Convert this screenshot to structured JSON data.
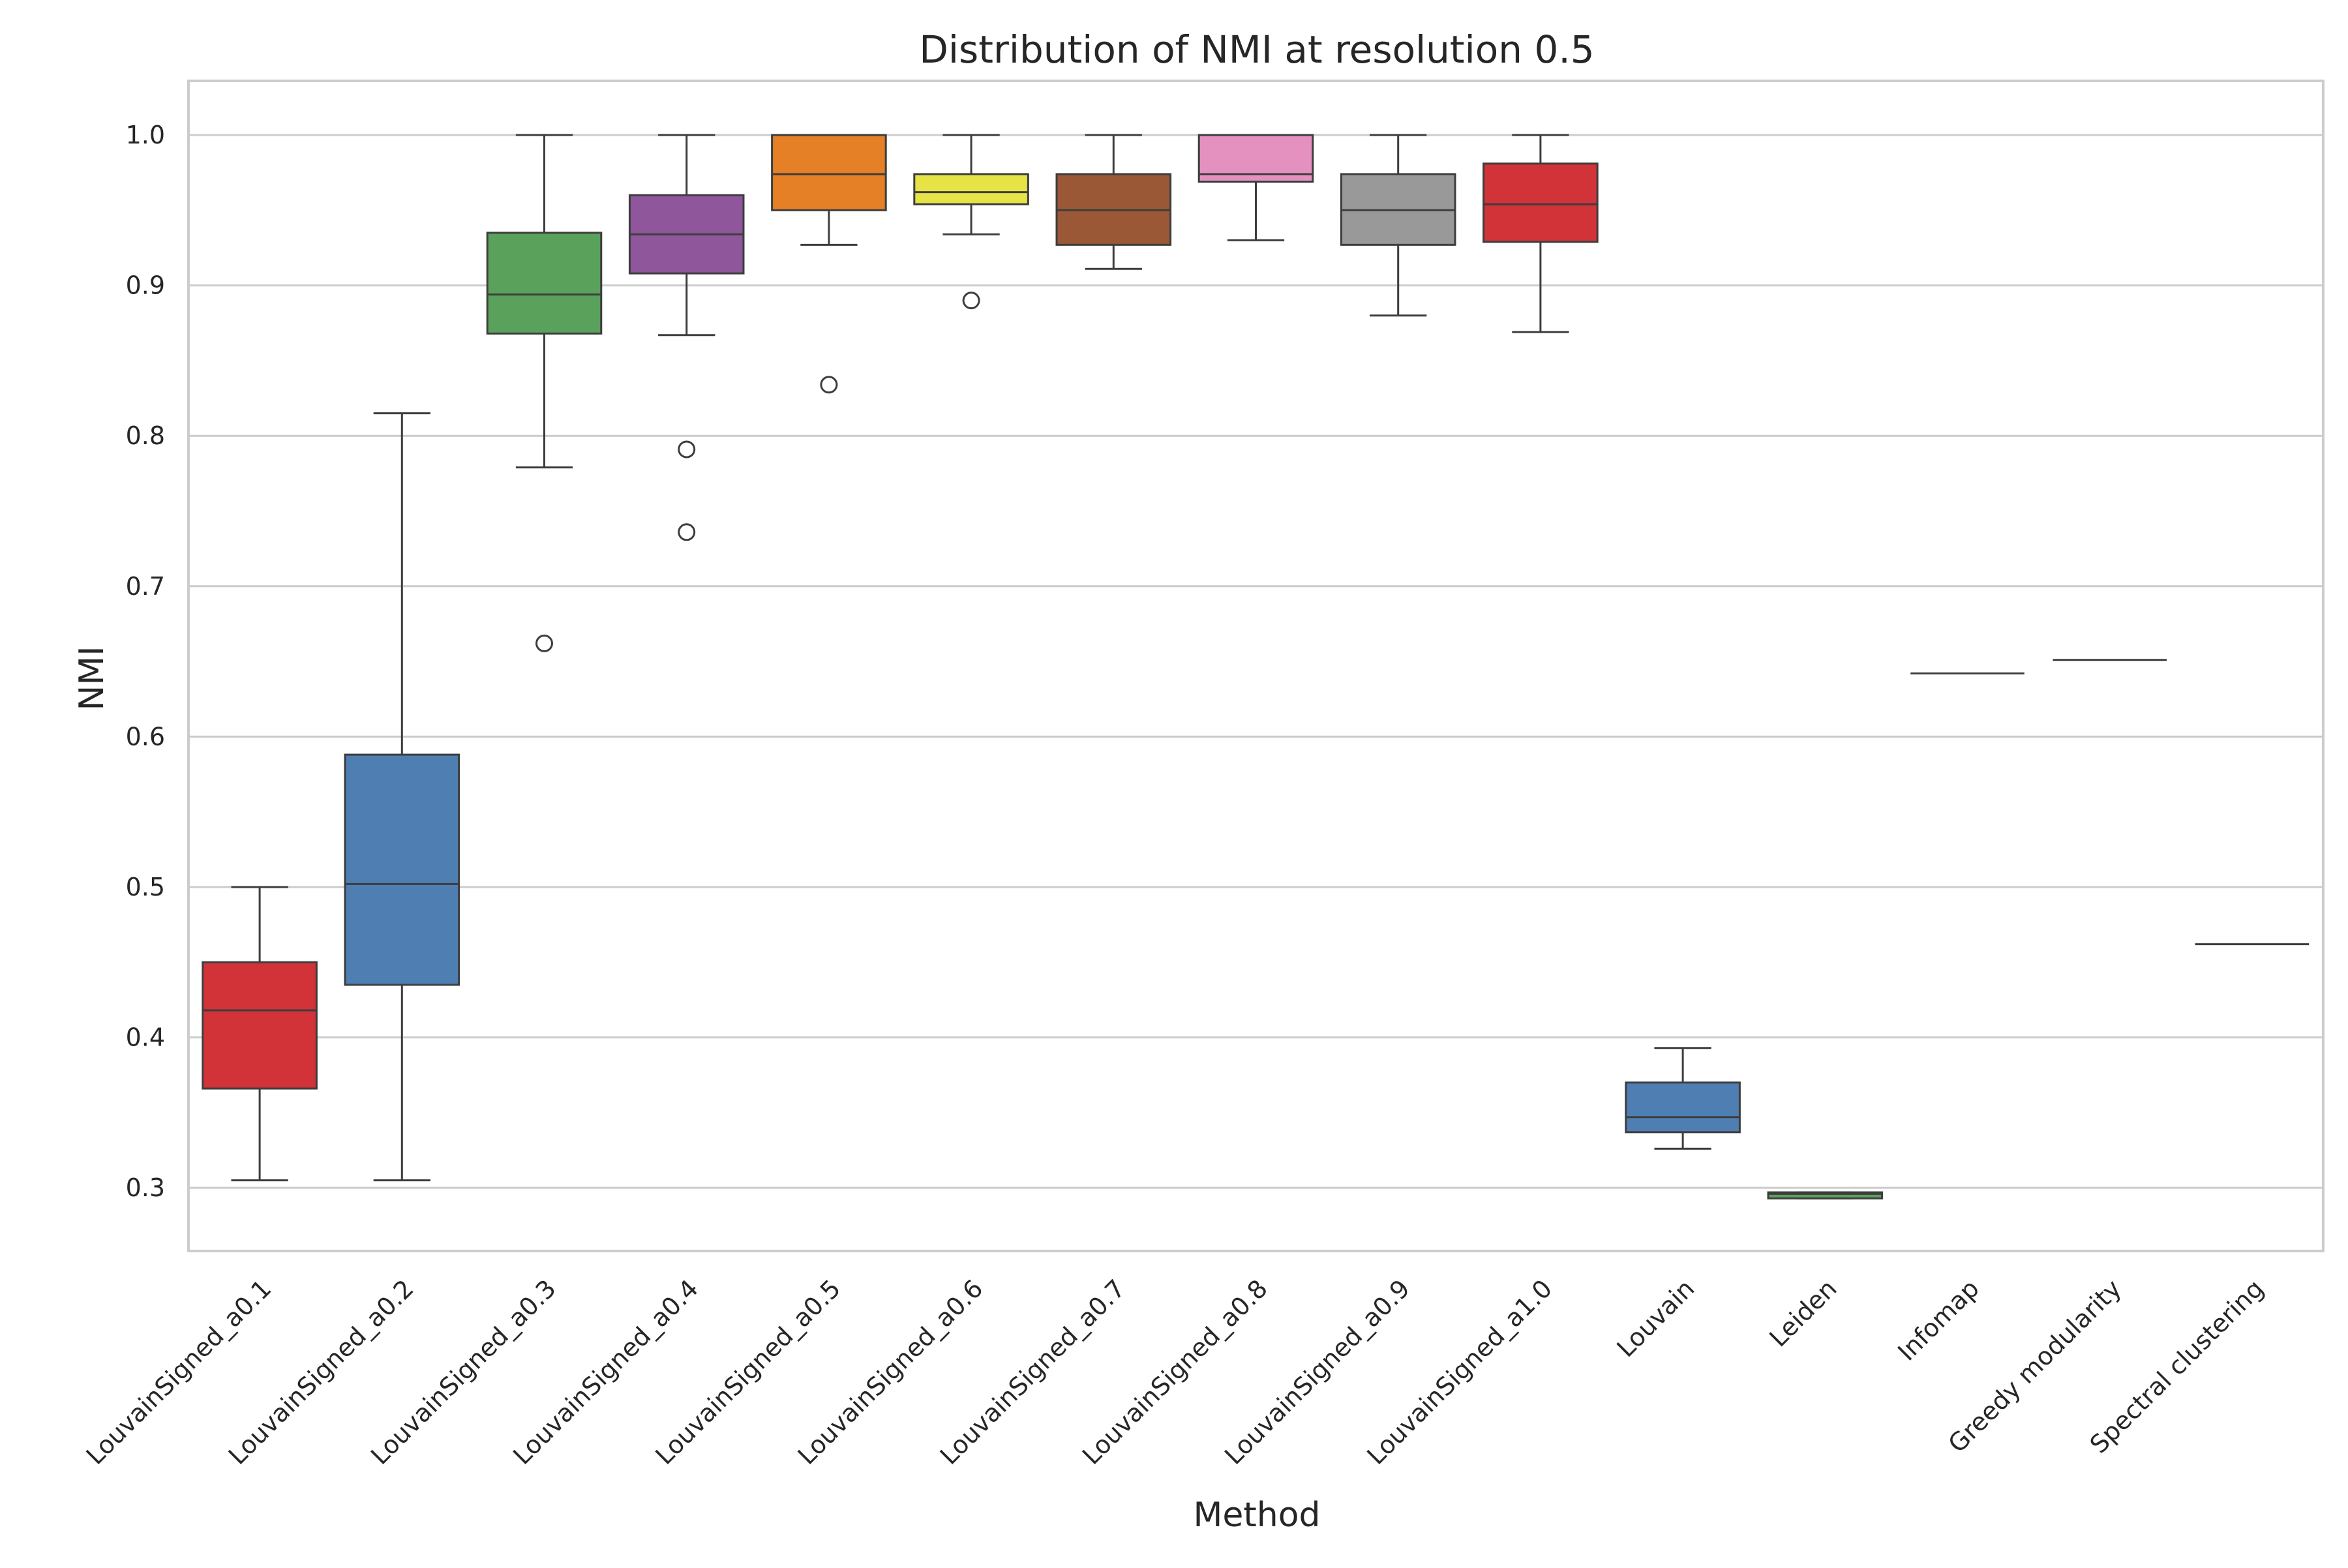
{
  "chart_data": {
    "type": "box",
    "title": "Distribution of NMI at resolution 0.5",
    "xlabel": "Method",
    "ylabel": "NMI",
    "ylim": [
      0.258,
      1.036
    ],
    "yticks": [
      "0.3",
      "0.4",
      "0.5",
      "0.6",
      "0.7",
      "0.8",
      "0.9",
      "1.0"
    ],
    "grid": true,
    "legend": "none",
    "categories": [
      "LouvainSigned_a0.1",
      "LouvainSigned_a0.2",
      "LouvainSigned_a0.3",
      "LouvainSigned_a0.4",
      "LouvainSigned_a0.5",
      "LouvainSigned_a0.6",
      "LouvainSigned_a0.7",
      "LouvainSigned_a0.8",
      "LouvainSigned_a0.9",
      "LouvainSigned_a1.0",
      "Louvain",
      "Leiden",
      "Infomap",
      "Greedy modularity",
      "Spectral clustering"
    ],
    "boxes": [
      {
        "whisker_low": 0.305,
        "q1": 0.366,
        "median": 0.418,
        "q3": 0.45,
        "whisker_high": 0.5,
        "outliers": [],
        "color": "#d13338"
      },
      {
        "whisker_low": 0.305,
        "q1": 0.435,
        "median": 0.502,
        "q3": 0.588,
        "whisker_high": 0.815,
        "outliers": [],
        "color": "#4f7fb2"
      },
      {
        "whisker_low": 0.779,
        "q1": 0.868,
        "median": 0.894,
        "q3": 0.935,
        "whisker_high": 1.0,
        "outliers": [
          0.662
        ],
        "color": "#5aa25c"
      },
      {
        "whisker_low": 0.867,
        "q1": 0.908,
        "median": 0.934,
        "q3": 0.96,
        "whisker_high": 1.0,
        "outliers": [
          0.791,
          0.736
        ],
        "color": "#8f569c"
      },
      {
        "whisker_low": 0.927,
        "q1": 0.95,
        "median": 0.974,
        "q3": 1.0,
        "whisker_high": 1.0,
        "outliers": [
          0.834
        ],
        "color": "#e58026"
      },
      {
        "whisker_low": 0.934,
        "q1": 0.954,
        "median": 0.962,
        "q3": 0.974,
        "whisker_high": 1.0,
        "outliers": [
          0.89
        ],
        "color": "#e6e346"
      },
      {
        "whisker_low": 0.911,
        "q1": 0.927,
        "median": 0.95,
        "q3": 0.974,
        "whisker_high": 1.0,
        "outliers": [],
        "color": "#9a5836"
      },
      {
        "whisker_low": 0.93,
        "q1": 0.969,
        "median": 0.974,
        "q3": 1.0,
        "whisker_high": 1.0,
        "outliers": [],
        "color": "#e591c0"
      },
      {
        "whisker_low": 0.88,
        "q1": 0.927,
        "median": 0.95,
        "q3": 0.974,
        "whisker_high": 1.0,
        "outliers": [],
        "color": "#999999"
      },
      {
        "whisker_low": 0.869,
        "q1": 0.929,
        "median": 0.954,
        "q3": 0.981,
        "whisker_high": 1.0,
        "outliers": [],
        "color": "#d13338"
      },
      {
        "whisker_low": 0.326,
        "q1": 0.337,
        "median": 0.347,
        "q3": 0.37,
        "whisker_high": 0.393,
        "outliers": [],
        "color": "#4f7fb2"
      },
      {
        "whisker_low": 0.293,
        "q1": 0.293,
        "median": 0.296,
        "q3": 0.297,
        "whisker_high": 0.297,
        "outliers": [],
        "color": "#5aa25c"
      },
      {
        "whisker_low": 0.642,
        "q1": 0.642,
        "median": 0.642,
        "q3": 0.642,
        "whisker_high": 0.642,
        "outliers": [],
        "color": "#8f569c"
      },
      {
        "whisker_low": 0.651,
        "q1": 0.651,
        "median": 0.651,
        "q3": 0.651,
        "whisker_high": 0.651,
        "outliers": [],
        "color": "#e58026"
      },
      {
        "whisker_low": 0.462,
        "q1": 0.462,
        "median": 0.462,
        "q3": 0.462,
        "whisker_high": 0.462,
        "outliers": [],
        "color": "#e6e346"
      }
    ]
  }
}
